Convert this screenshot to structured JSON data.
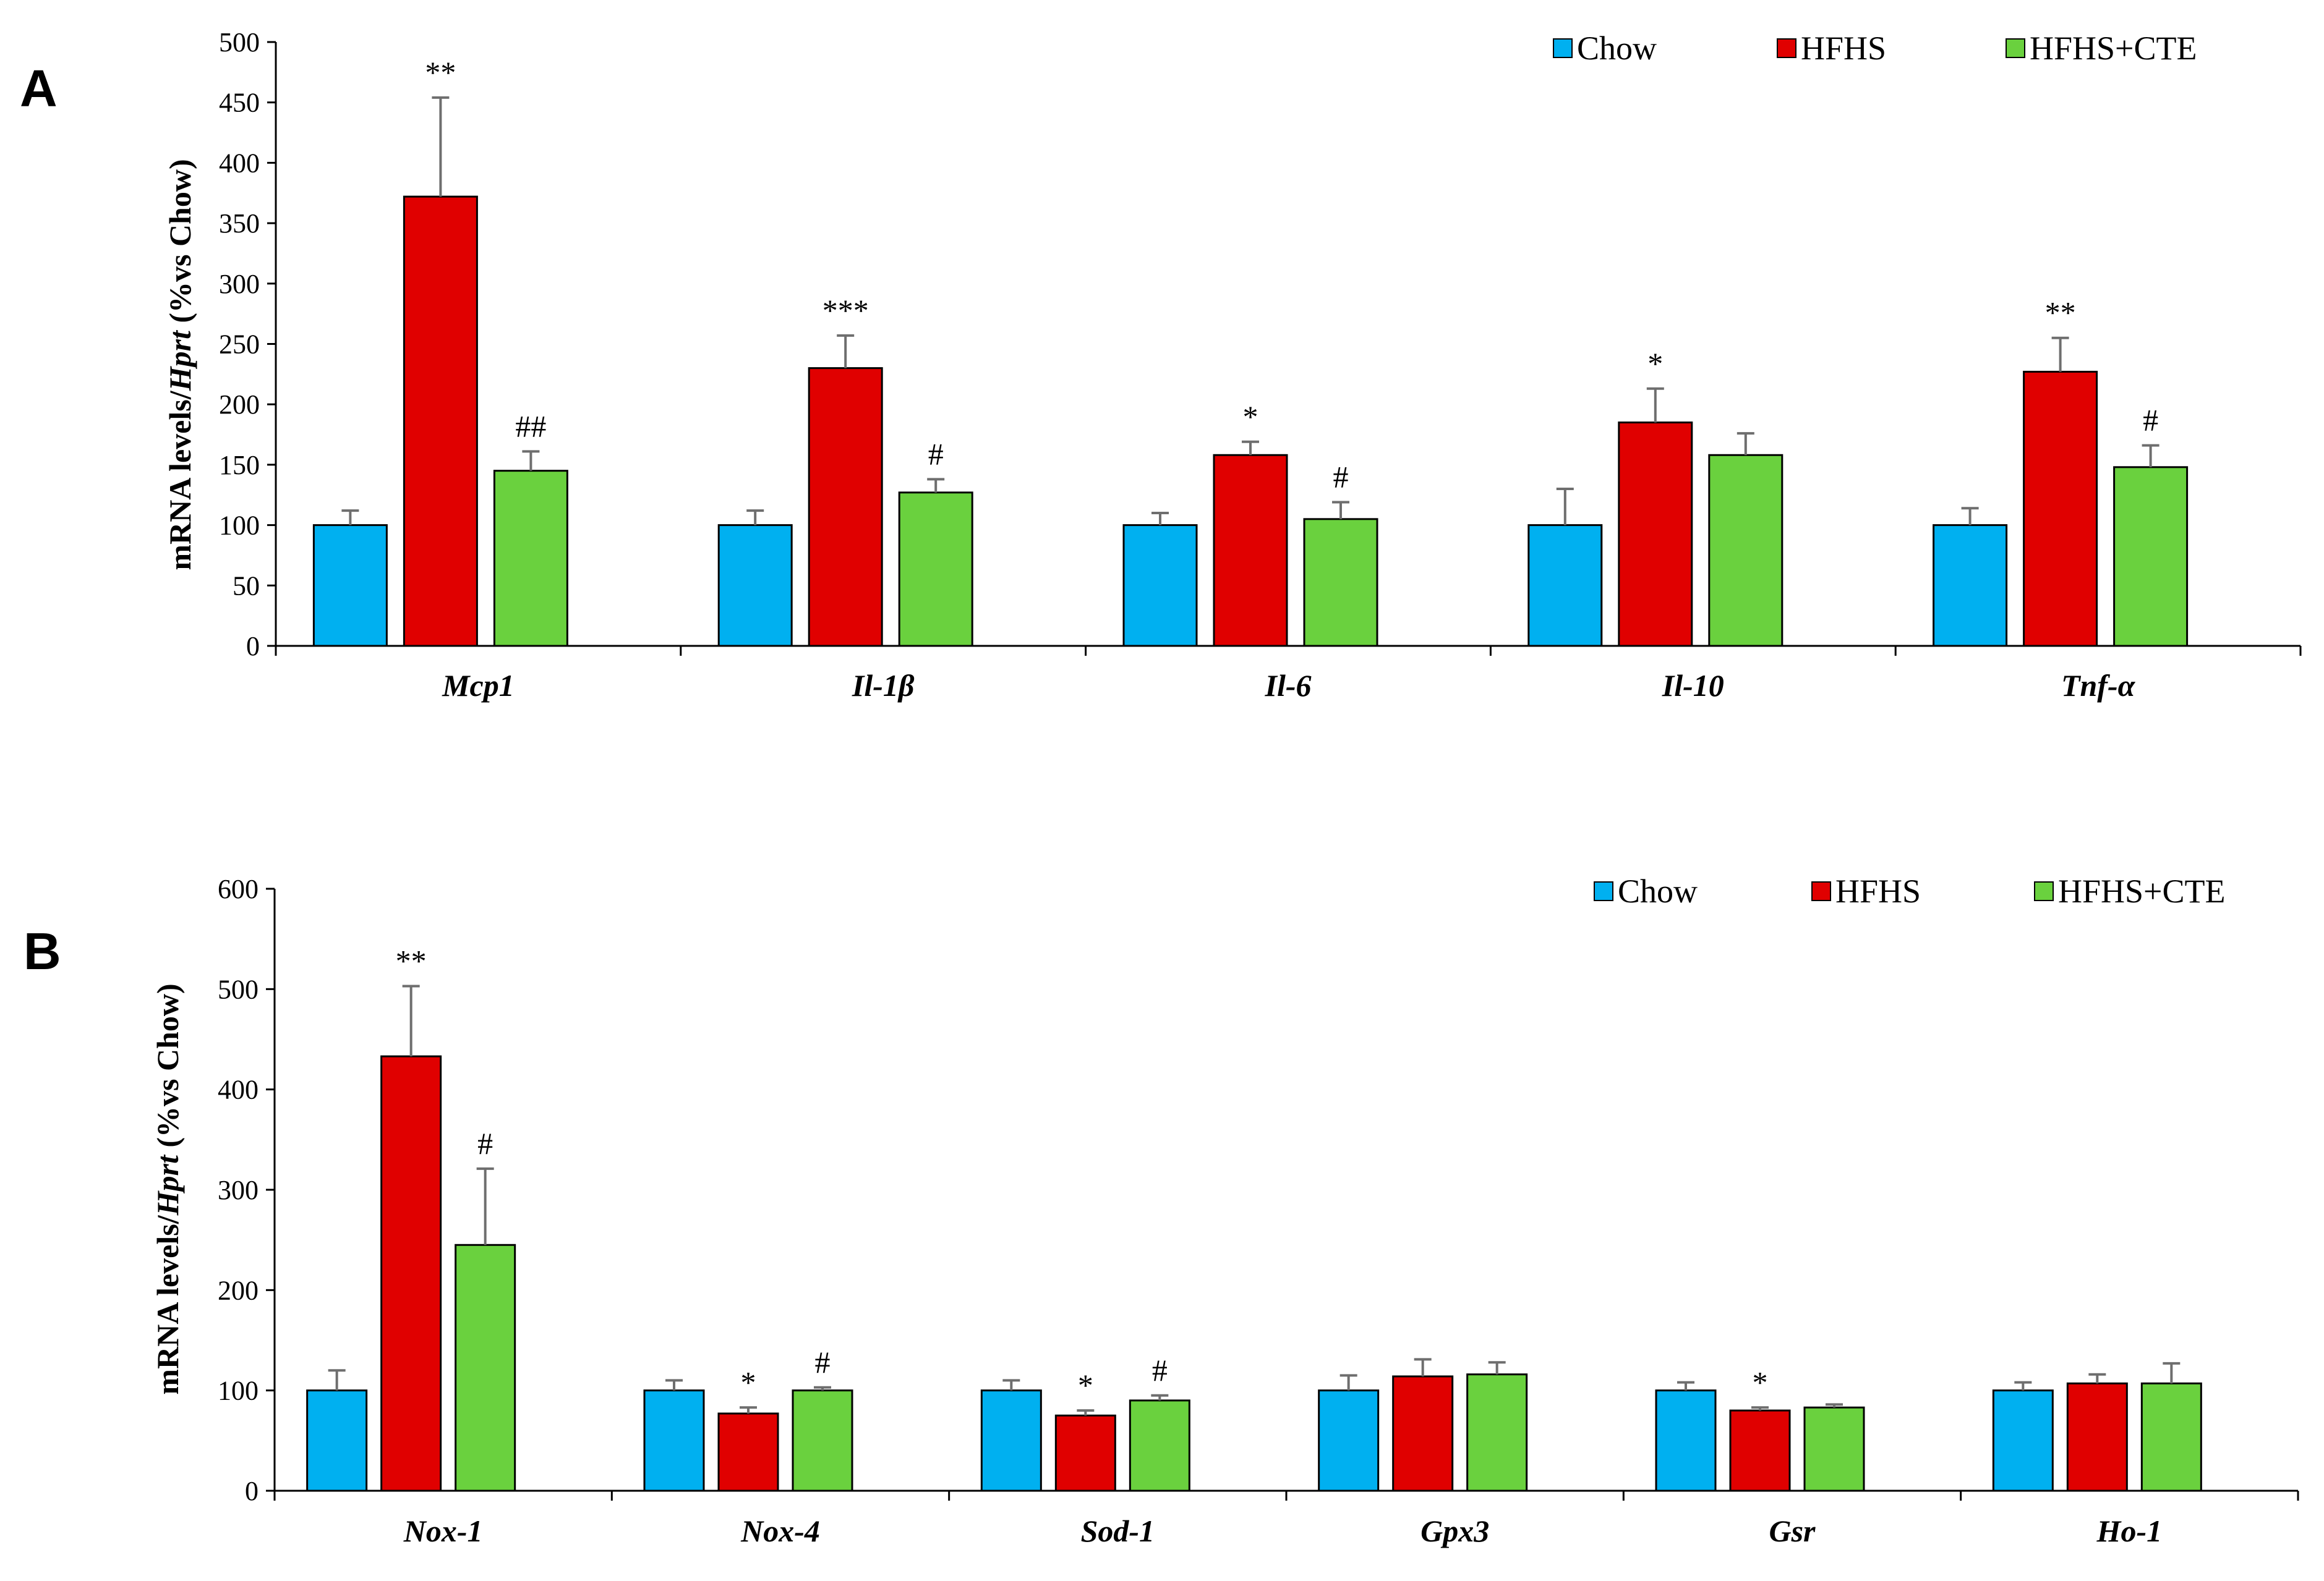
{
  "colors": {
    "Chow": "#00B0F0",
    "HFHS": "#E00000",
    "HFHS+CTE": "#6AD13E",
    "axis": "#000000",
    "error": "#6E6E6E"
  },
  "chart_data": [
    {
      "panel": "A",
      "type": "bar",
      "ylabel_pre": "mRNA levels/",
      "ylabel_italic": "Hprt",
      "ylabel_post": " (%vs Chow)",
      "ylim": [
        0,
        500
      ],
      "yticks": [
        0,
        50,
        100,
        150,
        200,
        250,
        300,
        350,
        400,
        450,
        500
      ],
      "categories": [
        "Mcp1",
        "Il-1β",
        "Il-6",
        "Il-10",
        "Tnf-α"
      ],
      "series": [
        {
          "name": "Chow",
          "values": [
            100,
            100,
            100,
            100,
            100
          ],
          "errors": [
            12,
            12,
            10,
            30,
            14
          ],
          "annotations": [
            "",
            "",
            "",
            "",
            ""
          ]
        },
        {
          "name": "HFHS",
          "values": [
            372,
            230,
            158,
            185,
            227
          ],
          "errors": [
            82,
            27,
            11,
            28,
            28
          ],
          "annotations": [
            "**",
            "***",
            "*",
            "*",
            "**"
          ]
        },
        {
          "name": "HFHS+CTE",
          "values": [
            145,
            127,
            105,
            158,
            148
          ],
          "errors": [
            16,
            11,
            14,
            18,
            18
          ],
          "annotations": [
            "##",
            "#",
            "#",
            "",
            "#"
          ]
        }
      ]
    },
    {
      "panel": "B",
      "type": "bar",
      "ylabel_pre": "mRNA levels/",
      "ylabel_italic": "Hprt",
      "ylabel_post": " (%vs Chow)",
      "ylim": [
        0,
        600
      ],
      "yticks": [
        0,
        100,
        200,
        300,
        400,
        500,
        600
      ],
      "categories": [
        "Nox-1",
        "Nox-4",
        "Sod-1",
        "Gpx3",
        "Gsr",
        "Ho-1"
      ],
      "series": [
        {
          "name": "Chow",
          "values": [
            100,
            100,
            100,
            100,
            100,
            100
          ],
          "errors": [
            20,
            10,
            10,
            15,
            8,
            8
          ],
          "annotations": [
            "",
            "",
            "",
            "",
            "",
            ""
          ]
        },
        {
          "name": "HFHS",
          "values": [
            433,
            77,
            75,
            114,
            80,
            107
          ],
          "errors": [
            70,
            6,
            5,
            17,
            3,
            9
          ],
          "annotations": [
            "**",
            "*",
            "*",
            "",
            "*",
            ""
          ]
        },
        {
          "name": "HFHS+CTE",
          "values": [
            245,
            100,
            90,
            116,
            83,
            107
          ],
          "errors": [
            76,
            3,
            5,
            12,
            3,
            20
          ],
          "annotations": [
            "#",
            "#",
            "#",
            "",
            "",
            ""
          ]
        }
      ]
    }
  ]
}
